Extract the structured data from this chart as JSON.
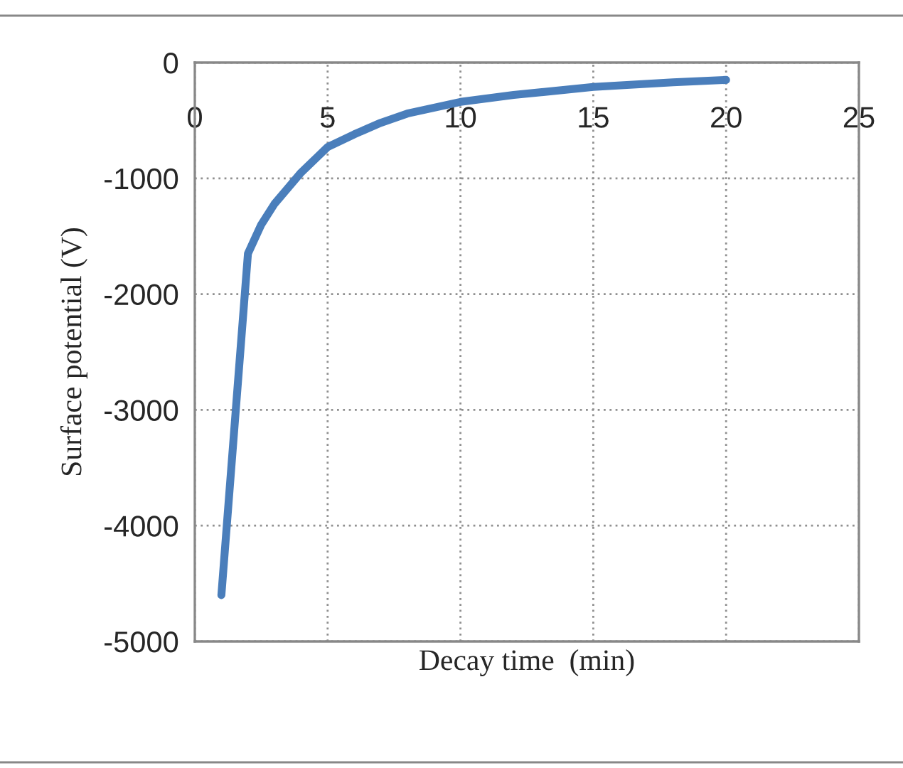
{
  "chart_data": {
    "type": "line",
    "xlabel": "Decay time  (min)",
    "ylabel": "Surface potential (V)",
    "x": [
      1,
      2,
      2.5,
      3,
      4,
      5,
      6,
      7,
      8,
      10,
      12,
      15,
      18,
      20
    ],
    "series": [
      {
        "color": "#4a7ebb",
        "values": [
          -4600,
          -1650,
          -1400,
          -1220,
          -950,
          -730,
          -620,
          -520,
          -440,
          -340,
          -280,
          -210,
          -170,
          -150
        ]
      }
    ],
    "xlim": [
      0,
      25
    ],
    "xticks": [
      0,
      5,
      10,
      15,
      20,
      25
    ],
    "ylim": [
      -5000,
      0
    ],
    "yticks": [
      -5000,
      -4000,
      -3000,
      -2000,
      -1000,
      0
    ],
    "grid": true,
    "legend": false,
    "marker": "none",
    "line_style": "solid"
  }
}
